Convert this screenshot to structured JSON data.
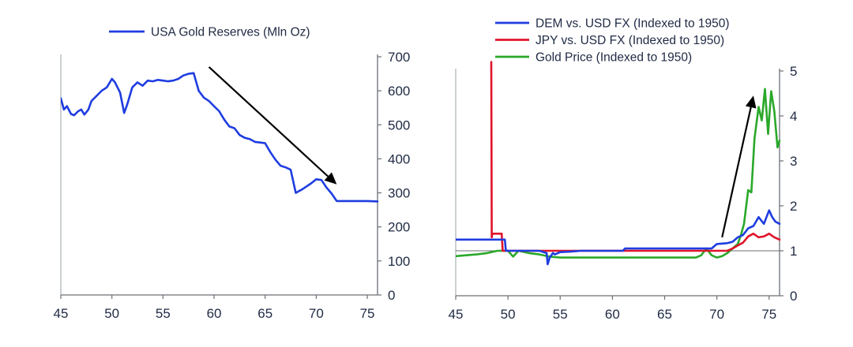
{
  "chart_data": [
    {
      "type": "line",
      "title": "",
      "xlabel": "",
      "ylabel": "",
      "xlim": [
        45,
        76
      ],
      "ylim": [
        0,
        700
      ],
      "y_axis_side": "right",
      "x_ticks": [
        45,
        50,
        55,
        60,
        65,
        70,
        75
      ],
      "y_ticks": [
        0,
        100,
        200,
        300,
        400,
        500,
        600,
        700
      ],
      "legend_position": "top-center",
      "series": [
        {
          "name": "USA Gold Reserves (Mln Oz)",
          "color": "#1f3de0",
          "x": [
            45,
            45.3,
            45.6,
            46,
            46.3,
            46.7,
            47,
            47.3,
            47.7,
            48,
            48.5,
            49,
            49.5,
            50,
            50.3,
            50.8,
            51.2,
            51.5,
            52,
            52.5,
            53,
            53.5,
            54,
            54.5,
            55,
            55.5,
            56,
            56.5,
            57,
            57.5,
            58,
            58.5,
            59,
            59.5,
            60,
            60.5,
            61,
            61.5,
            62,
            62.5,
            63,
            63.5,
            64,
            64.5,
            65,
            65.5,
            66,
            66.5,
            67,
            67.5,
            68,
            68.3,
            68.6,
            69,
            69.5,
            70,
            70.5,
            71,
            71.5,
            72,
            73,
            74,
            75,
            76
          ],
          "values": [
            578,
            545,
            555,
            532,
            528,
            540,
            545,
            530,
            545,
            570,
            585,
            600,
            610,
            635,
            625,
            595,
            535,
            560,
            610,
            625,
            615,
            630,
            628,
            632,
            630,
            628,
            630,
            635,
            645,
            650,
            652,
            600,
            580,
            570,
            555,
            540,
            515,
            495,
            490,
            470,
            462,
            458,
            450,
            448,
            446,
            420,
            398,
            380,
            375,
            368,
            300,
            305,
            310,
            318,
            328,
            340,
            338,
            316,
            298,
            276,
            276,
            276,
            276,
            275
          ]
        }
      ],
      "annotations": [
        {
          "type": "arrow",
          "from": [
            59.5,
            670
          ],
          "to": [
            72,
            325
          ],
          "color": "#000000"
        }
      ]
    },
    {
      "type": "line",
      "title": "",
      "xlabel": "",
      "ylabel": "",
      "xlim": [
        45,
        76
      ],
      "ylim": [
        0,
        5
      ],
      "y_axis_side": "right",
      "x_ticks": [
        45,
        50,
        55,
        60,
        65,
        70,
        75
      ],
      "y_ticks": [
        0,
        1,
        2,
        3,
        4,
        5
      ],
      "reference_line": 1,
      "legend_position": "top-center",
      "series": [
        {
          "name": "DEM vs. USD FX (Indexed to 1950)",
          "color": "#1f3de0",
          "x": [
            45,
            48.5,
            48.6,
            49.7,
            49.8,
            50,
            51,
            53,
            53.7,
            53.8,
            54,
            54.3,
            54.5,
            55,
            56,
            57,
            60,
            61,
            61.2,
            65,
            69,
            69.5,
            70,
            71,
            71.5,
            72,
            72.5,
            73,
            73.5,
            74,
            74.5,
            75,
            75.3,
            75.6,
            76
          ],
          "values": [
            1.25,
            1.25,
            1.25,
            1.25,
            1,
            1,
            1,
            1,
            0.95,
            0.7,
            0.85,
            0.95,
            0.92,
            0.97,
            0.98,
            1,
            1,
            1,
            1.05,
            1.05,
            1.05,
            1.05,
            1.15,
            1.17,
            1.2,
            1.3,
            1.35,
            1.5,
            1.55,
            1.75,
            1.6,
            1.9,
            1.75,
            1.65,
            1.6
          ]
        },
        {
          "name": "JPY vs. USD FX (Indexed to 1950)",
          "color": "#e0142a",
          "x": [
            48.4,
            48.45,
            48.5,
            49.4,
            49.5,
            50,
            55,
            60,
            65,
            70,
            71,
            71.5,
            72,
            72.5,
            73,
            73.5,
            74,
            74.5,
            75,
            75.5,
            76
          ],
          "values": [
            5.2,
            1.3,
            1.38,
            1.38,
            1,
            1,
            1,
            1,
            1,
            1,
            1,
            1.05,
            1.12,
            1.18,
            1.32,
            1.38,
            1.3,
            1.32,
            1.38,
            1.3,
            1.25
          ]
        },
        {
          "name": "Gold Price (Indexed to 1950)",
          "color": "#2aa82a",
          "x": [
            45,
            46,
            47,
            48,
            49,
            50,
            50.5,
            51,
            52,
            53,
            54,
            55,
            56,
            60,
            65,
            68,
            68.5,
            69,
            69.5,
            70,
            70.5,
            71,
            71.5,
            72,
            72.3,
            72.6,
            73,
            73.3,
            73.6,
            74,
            74.3,
            74.6,
            74.9,
            75.2,
            75.5,
            75.8,
            76
          ],
          "values": [
            0.88,
            0.9,
            0.92,
            0.95,
            1,
            1,
            0.87,
            1,
            0.95,
            0.92,
            0.87,
            0.85,
            0.85,
            0.85,
            0.85,
            0.85,
            0.9,
            1.05,
            0.9,
            0.85,
            0.88,
            0.95,
            1.05,
            1.15,
            1.35,
            1.6,
            2.35,
            2.3,
            3.5,
            4.2,
            3.9,
            4.6,
            3.6,
            4.55,
            4.1,
            3.3,
            3.45
          ]
        }
      ],
      "annotations": [
        {
          "type": "arrow",
          "from": [
            70.5,
            1.3
          ],
          "to": [
            73.5,
            4.45
          ],
          "color": "#000000"
        }
      ]
    }
  ]
}
